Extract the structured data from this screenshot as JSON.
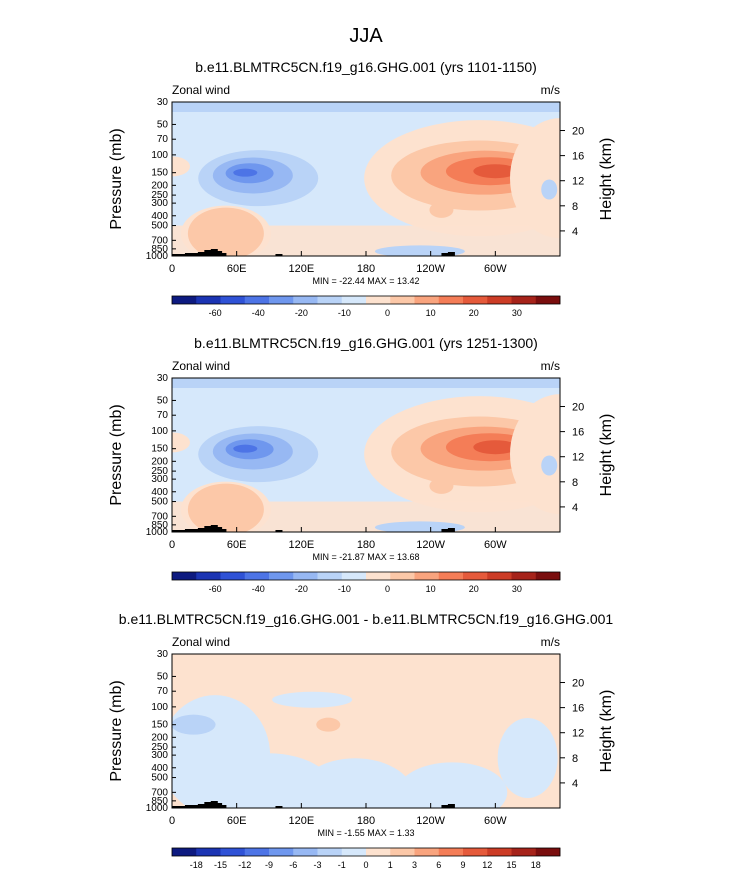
{
  "figure": {
    "title": "JJA"
  },
  "colors": {
    "positive_scale": [
      "#fde2cf",
      "#fcc8a8",
      "#f9a47e",
      "#f47d57",
      "#e55a3b",
      "#cc3c26",
      "#a6231a",
      "#7a0e0e"
    ],
    "negative_scale": [
      "#d6e8fb",
      "#b9d3f7",
      "#97b8f3",
      "#6f97ee",
      "#4d74e6",
      "#2f52d6",
      "#1b34b3",
      "#0d1a80"
    ],
    "topography": "#000000"
  },
  "chart_data": [
    {
      "type": "heatmap",
      "title": "b.e11.BLMTRC5CN.f19_g16.GHG.001 (yrs 1101-1150)",
      "left_label": "Zonal wind",
      "units_label": "m/s",
      "ylabel": "Pressure (mb)",
      "ylabel_right": "Height (km)",
      "x_ticks": [
        "0",
        "60E",
        "120E",
        "180",
        "120W",
        "60W"
      ],
      "y_ticks": [
        "30",
        "50",
        "70",
        "100",
        "150",
        "200",
        "250",
        "300",
        "400",
        "500",
        "700",
        "850",
        "1000"
      ],
      "y_ticks_right": [
        "20",
        "16",
        "12",
        "8",
        "4"
      ],
      "stats": "MIN = -22.44  MAX =  13.42",
      "min": -22.44,
      "max": 13.42,
      "colorbar": {
        "levels": [
          -70,
          -60,
          -50,
          -40,
          -30,
          -20,
          -15,
          -10,
          -5,
          0,
          5,
          10,
          15,
          20,
          25,
          30,
          35
        ],
        "labels": [
          "-60",
          "-40",
          "-20",
          "-10",
          "0",
          "10",
          "20",
          "30"
        ]
      },
      "features": [
        {
          "lon": 80,
          "p": 150,
          "value": -22,
          "kind": "jet"
        },
        {
          "lon": 285,
          "p": 150,
          "value": 13,
          "kind": "jet"
        },
        {
          "lon": 50,
          "p": 600,
          "value": 4,
          "kind": "low-level"
        },
        {
          "lon": 230,
          "p": 900,
          "value": -4,
          "kind": "low-level"
        }
      ]
    },
    {
      "type": "heatmap",
      "title": "b.e11.BLMTRC5CN.f19_g16.GHG.001 (yrs 1251-1300)",
      "left_label": "Zonal wind",
      "units_label": "m/s",
      "ylabel": "Pressure (mb)",
      "ylabel_right": "Height (km)",
      "x_ticks": [
        "0",
        "60E",
        "120E",
        "180",
        "120W",
        "60W"
      ],
      "y_ticks": [
        "30",
        "50",
        "70",
        "100",
        "150",
        "200",
        "250",
        "300",
        "400",
        "500",
        "700",
        "850",
        "1000"
      ],
      "y_ticks_right": [
        "20",
        "16",
        "12",
        "8",
        "4"
      ],
      "stats": "MIN = -21.87  MAX =  13.68",
      "min": -21.87,
      "max": 13.68,
      "colorbar": {
        "levels": [
          -70,
          -60,
          -50,
          -40,
          -30,
          -20,
          -15,
          -10,
          -5,
          0,
          5,
          10,
          15,
          20,
          25,
          30,
          35
        ],
        "labels": [
          "-60",
          "-40",
          "-20",
          "-10",
          "0",
          "10",
          "20",
          "30"
        ]
      },
      "features": [
        {
          "lon": 78,
          "p": 150,
          "value": -21,
          "kind": "jet"
        },
        {
          "lon": 285,
          "p": 150,
          "value": 13.5,
          "kind": "jet"
        },
        {
          "lon": 50,
          "p": 600,
          "value": 4,
          "kind": "low-level"
        },
        {
          "lon": 230,
          "p": 900,
          "value": -4,
          "kind": "low-level"
        }
      ]
    },
    {
      "type": "heatmap",
      "title": "b.e11.BLMTRC5CN.f19_g16.GHG.001 - b.e11.BLMTRC5CN.f19_g16.GHG.001",
      "left_label": "Zonal wind",
      "units_label": "m/s",
      "ylabel": "Pressure (mb)",
      "ylabel_right": "Height (km)",
      "x_ticks": [
        "0",
        "60E",
        "120E",
        "180",
        "120W",
        "60W"
      ],
      "y_ticks": [
        "30",
        "50",
        "70",
        "100",
        "150",
        "200",
        "250",
        "300",
        "400",
        "500",
        "700",
        "850",
        "1000"
      ],
      "y_ticks_right": [
        "20",
        "16",
        "12",
        "8",
        "4"
      ],
      "stats": "MIN = -1.55  MAX =  1.33",
      "min": -1.55,
      "max": 1.33,
      "colorbar": {
        "levels": [
          -21,
          -18,
          -15,
          -12,
          -9,
          -6,
          -3,
          -1,
          0,
          1,
          3,
          6,
          9,
          12,
          15,
          18,
          21
        ],
        "labels": [
          "-18",
          "-15",
          "-12",
          "-9",
          "-6",
          "-3",
          "-1",
          "0",
          "1",
          "3",
          "6",
          "9",
          "12",
          "15",
          "18"
        ]
      },
      "features": [
        {
          "lon": 20,
          "p": 150,
          "value": -1.5,
          "kind": "anomaly"
        },
        {
          "lon": 145,
          "p": 150,
          "value": 1.3,
          "kind": "anomaly"
        }
      ]
    }
  ]
}
